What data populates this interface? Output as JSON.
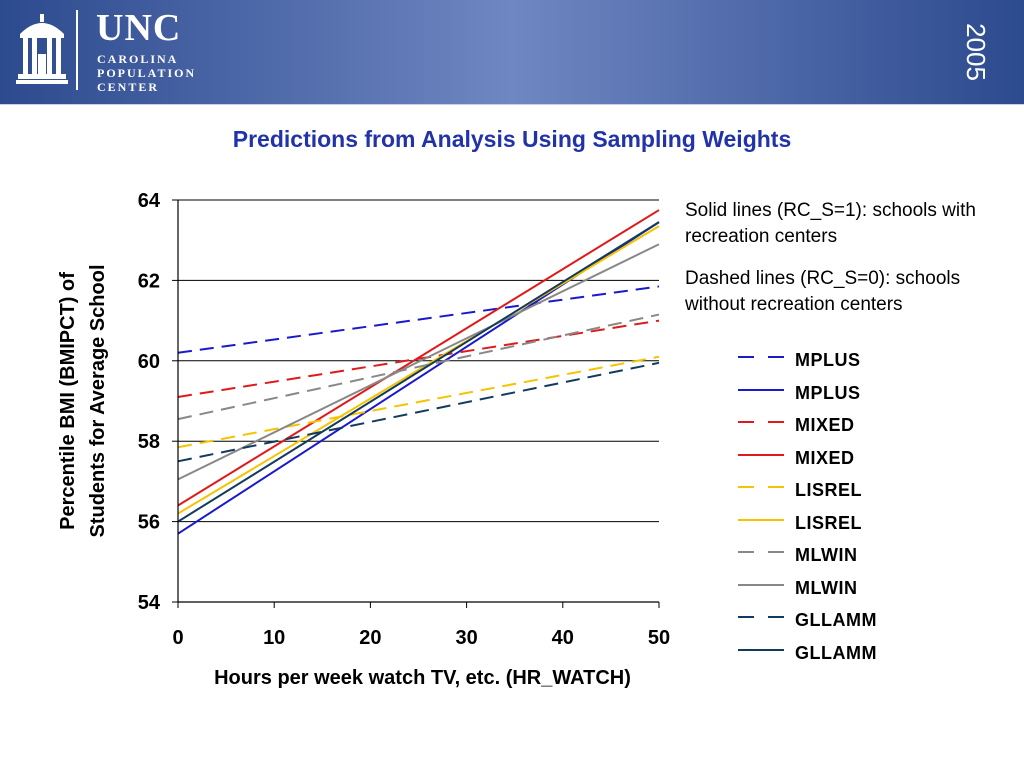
{
  "header": {
    "logo_name": "UNC",
    "logo_sub": [
      "CAROLINA",
      "POPULATION",
      "CENTER"
    ],
    "year": "2005",
    "logo_icon": "old-well-icon"
  },
  "title": "Predictions from Analysis Using Sampling Weights",
  "annotations": {
    "solid": "Solid lines (RC_S=1): schools with recreation centers",
    "dashed": "Dashed lines (RC_S=0): schools without recreation centers"
  },
  "chart_data": {
    "type": "line",
    "xlabel": "Hours per week watch TV, etc. (HR_WATCH)",
    "ylabel": [
      "Percentile BMI (BMIPCT) of",
      "Students for Average School"
    ],
    "xlim": [
      0,
      50
    ],
    "ylim": [
      54,
      64
    ],
    "xticks": [
      0,
      10,
      20,
      30,
      40,
      50
    ],
    "yticks": [
      54,
      56,
      58,
      60,
      62,
      64
    ],
    "grid": "horizontal",
    "legend_position": "right",
    "series": [
      {
        "name": "MPLUS",
        "style": "dashed",
        "color": "#1a1acc",
        "x": [
          0,
          50
        ],
        "y": [
          60.2,
          61.85
        ]
      },
      {
        "name": "MPLUS",
        "style": "solid",
        "color": "#1a1acc",
        "x": [
          0,
          50
        ],
        "y": [
          55.7,
          63.45
        ]
      },
      {
        "name": "MIXED",
        "style": "dashed",
        "color": "#e01a1a",
        "x": [
          0,
          50
        ],
        "y": [
          59.1,
          61.0
        ]
      },
      {
        "name": "MIXED",
        "style": "solid",
        "color": "#e01a1a",
        "x": [
          0,
          50
        ],
        "y": [
          56.4,
          63.75
        ]
      },
      {
        "name": "LISREL",
        "style": "dashed",
        "color": "#f5c400",
        "x": [
          0,
          50
        ],
        "y": [
          57.85,
          60.1
        ]
      },
      {
        "name": "LISREL",
        "style": "solid",
        "color": "#f5c400",
        "x": [
          0,
          50
        ],
        "y": [
          56.2,
          63.35
        ]
      },
      {
        "name": "MLWIN",
        "style": "dashed",
        "color": "#888888",
        "x": [
          0,
          50
        ],
        "y": [
          58.55,
          61.15
        ]
      },
      {
        "name": "MLWIN",
        "style": "solid",
        "color": "#888888",
        "x": [
          0,
          50
        ],
        "y": [
          57.05,
          62.9
        ]
      },
      {
        "name": "GLLAMM",
        "style": "dashed",
        "color": "#123a5e",
        "x": [
          0,
          50
        ],
        "y": [
          57.5,
          59.95
        ]
      },
      {
        "name": "GLLAMM",
        "style": "solid",
        "color": "#123a5e",
        "x": [
          0,
          50
        ],
        "y": [
          56.0,
          63.45
        ]
      }
    ]
  }
}
